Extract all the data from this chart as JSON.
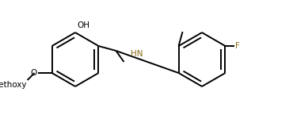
{
  "bg_color": "#ffffff",
  "line_color": "#000000",
  "nh_color": "#8B6914",
  "f_color": "#8B6914",
  "bond_lw": 1.4,
  "dbo": 0.012,
  "figsize": [
    3.7,
    1.45
  ],
  "dpi": 100,
  "xlim": [
    0.0,
    3.7
  ],
  "ylim": [
    0.0,
    1.45
  ]
}
